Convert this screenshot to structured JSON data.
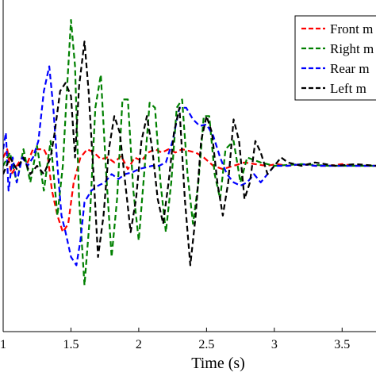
{
  "chart_data": {
    "type": "line",
    "title": "",
    "xlabel": "Time (s)",
    "ylabel": "",
    "xlim": [
      1.0,
      3.75
    ],
    "ylim": [
      -1.0,
      1.0
    ],
    "xticks": [
      1,
      1.5,
      2,
      2.5,
      3,
      3.5
    ],
    "xtick_labels": [
      "1",
      "1.5",
      "2",
      "2.5",
      "3",
      "3.5"
    ],
    "grid": false,
    "legend_position": "top-right",
    "series": [
      {
        "name": "Front m",
        "color": "#ff0000",
        "x": [
          1.0,
          1.03,
          1.06,
          1.1,
          1.14,
          1.18,
          1.22,
          1.26,
          1.3,
          1.33,
          1.36,
          1.4,
          1.44,
          1.48,
          1.52,
          1.57,
          1.62,
          1.67,
          1.72,
          1.77,
          1.82,
          1.87,
          1.92,
          1.97,
          2.02,
          2.07,
          2.12,
          2.17,
          2.22,
          2.27,
          2.32,
          2.37,
          2.42,
          2.48,
          2.55,
          2.62,
          2.7,
          2.78,
          2.86,
          2.94,
          3.02,
          3.1,
          3.2,
          3.3,
          3.4,
          3.5,
          3.6,
          3.75
        ],
        "y": [
          0.05,
          0.1,
          -0.05,
          0.0,
          0.05,
          0.02,
          0.1,
          0.1,
          0.1,
          0.05,
          -0.15,
          -0.3,
          -0.4,
          -0.35,
          -0.1,
          0.05,
          0.1,
          0.08,
          0.04,
          0.05,
          0.02,
          0.06,
          -0.02,
          0.05,
          0.03,
          0.08,
          0.1,
          0.08,
          0.1,
          0.08,
          0.1,
          0.09,
          0.08,
          0.05,
          0.0,
          -0.02,
          0.0,
          0.02,
          0.01,
          0.0,
          0.01,
          0.0,
          0.01,
          0.0,
          0.0,
          0.01,
          0.0,
          0.0
        ]
      },
      {
        "name": "Right m",
        "color": "#008000",
        "x": [
          1.0,
          1.05,
          1.1,
          1.15,
          1.2,
          1.25,
          1.3,
          1.35,
          1.4,
          1.44,
          1.47,
          1.5,
          1.53,
          1.56,
          1.6,
          1.64,
          1.68,
          1.72,
          1.76,
          1.8,
          1.84,
          1.88,
          1.92,
          1.96,
          2.0,
          2.04,
          2.08,
          2.12,
          2.16,
          2.2,
          2.24,
          2.28,
          2.32,
          2.36,
          2.4,
          2.44,
          2.48,
          2.52,
          2.56,
          2.6,
          2.64,
          2.7,
          2.75,
          2.8,
          2.9,
          3.0,
          3.2,
          3.4,
          3.75
        ],
        "y": [
          0.0,
          0.08,
          -0.1,
          0.1,
          -0.1,
          0.12,
          -0.15,
          0.15,
          -0.3,
          0.0,
          0.45,
          0.88,
          0.6,
          -0.2,
          -0.72,
          -0.3,
          0.35,
          0.55,
          -0.05,
          -0.55,
          -0.2,
          0.4,
          0.4,
          -0.15,
          -0.45,
          -0.05,
          0.38,
          0.35,
          -0.1,
          -0.4,
          -0.1,
          0.35,
          0.4,
          -0.05,
          -0.35,
          -0.1,
          0.3,
          0.3,
          -0.05,
          -0.2,
          0.1,
          0.15,
          -0.1,
          0.05,
          0.02,
          0.0,
          0.01,
          0.0,
          0.0
        ]
      },
      {
        "name": "Rear m",
        "color": "#0000ff",
        "x": [
          1.0,
          1.02,
          1.04,
          1.07,
          1.1,
          1.14,
          1.18,
          1.22,
          1.26,
          1.3,
          1.34,
          1.37,
          1.4,
          1.43,
          1.46,
          1.5,
          1.54,
          1.57,
          1.6,
          1.65,
          1.7,
          1.75,
          1.8,
          1.85,
          1.9,
          1.95,
          2.0,
          2.05,
          2.1,
          2.15,
          2.2,
          2.25,
          2.3,
          2.35,
          2.4,
          2.45,
          2.5,
          2.55,
          2.6,
          2.65,
          2.7,
          2.75,
          2.8,
          2.85,
          2.9,
          3.0,
          3.1,
          3.2,
          3.3,
          3.45,
          3.6,
          3.75
        ],
        "y": [
          0.1,
          0.2,
          -0.15,
          0.05,
          -0.1,
          0.05,
          0.0,
          0.05,
          0.15,
          0.45,
          0.6,
          0.35,
          0.0,
          -0.3,
          -0.4,
          -0.55,
          -0.6,
          -0.45,
          -0.22,
          -0.15,
          -0.12,
          -0.1,
          -0.05,
          -0.08,
          -0.05,
          -0.04,
          -0.02,
          -0.01,
          0.0,
          0.0,
          0.02,
          0.15,
          0.35,
          0.35,
          0.28,
          0.24,
          0.25,
          0.18,
          0.05,
          -0.05,
          -0.1,
          -0.12,
          -0.1,
          -0.05,
          -0.1,
          0.0,
          0.0,
          0.01,
          0.0,
          0.0,
          0.0,
          0.0
        ]
      },
      {
        "name": "Left m",
        "color": "#000000",
        "x": [
          1.0,
          1.05,
          1.1,
          1.15,
          1.2,
          1.25,
          1.3,
          1.35,
          1.38,
          1.42,
          1.46,
          1.5,
          1.53,
          1.56,
          1.6,
          1.63,
          1.67,
          1.7,
          1.74,
          1.78,
          1.82,
          1.86,
          1.9,
          1.94,
          1.98,
          2.02,
          2.06,
          2.1,
          2.14,
          2.18,
          2.22,
          2.26,
          2.3,
          2.34,
          2.38,
          2.42,
          2.46,
          2.5,
          2.54,
          2.58,
          2.62,
          2.66,
          2.7,
          2.74,
          2.78,
          2.82,
          2.86,
          2.9,
          2.95,
          3.0,
          3.05,
          3.1,
          3.2,
          3.3,
          3.45,
          3.6,
          3.75
        ],
        "y": [
          -0.05,
          0.05,
          -0.02,
          0.05,
          -0.05,
          0.0,
          -0.05,
          0.05,
          0.2,
          0.45,
          0.5,
          0.42,
          0.05,
          0.48,
          0.75,
          0.45,
          -0.1,
          -0.55,
          -0.3,
          0.1,
          0.3,
          0.2,
          -0.1,
          -0.4,
          -0.2,
          0.15,
          0.3,
          0.1,
          -0.2,
          -0.35,
          -0.1,
          0.2,
          0.35,
          -0.2,
          -0.6,
          -0.3,
          0.15,
          0.3,
          0.2,
          -0.1,
          -0.3,
          -0.1,
          0.28,
          0.15,
          -0.2,
          -0.1,
          0.15,
          0.08,
          -0.05,
          0.0,
          0.05,
          0.02,
          0.0,
          0.02,
          0.0,
          0.01,
          0.0
        ]
      }
    ]
  }
}
